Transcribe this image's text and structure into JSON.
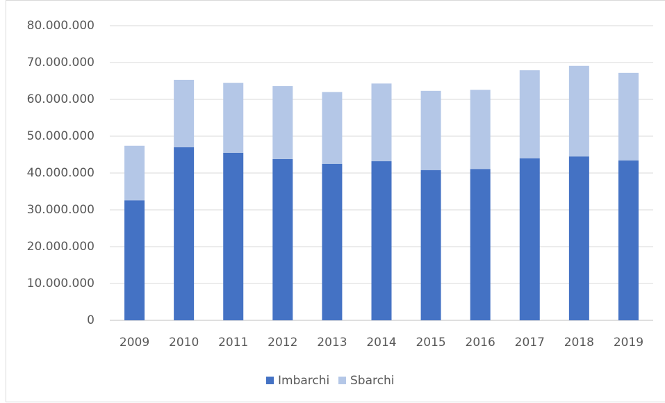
{
  "chart_data": {
    "type": "stacked_bar",
    "categories": [
      "2009",
      "2010",
      "2011",
      "2012",
      "2013",
      "2014",
      "2015",
      "2016",
      "2017",
      "2018",
      "2019"
    ],
    "series": [
      {
        "name": "Imbarchi",
        "color": "#4472c4",
        "values": [
          32600000,
          47000000,
          45500000,
          43800000,
          42500000,
          43200000,
          40800000,
          41100000,
          44000000,
          44500000,
          43400000
        ]
      },
      {
        "name": "Sbarchi",
        "color": "#b4c7e7",
        "values": [
          14800000,
          18300000,
          19000000,
          19800000,
          19500000,
          21100000,
          21500000,
          21500000,
          23900000,
          24600000,
          23800000
        ]
      }
    ],
    "ylim": [
      0,
      80000000
    ],
    "yticks": [
      0,
      {
        "value": 10000000,
        "label": "10.000.000"
      },
      {
        "value": 20000000,
        "label": "20.000.000"
      },
      {
        "value": 30000000,
        "label": "30.000.000"
      },
      {
        "value": 40000000,
        "label": "40.000.000"
      },
      {
        "value": 50000000,
        "label": "50.000.000"
      },
      {
        "value": 60000000,
        "label": "60.000.000"
      },
      {
        "value": 70000000,
        "label": "70.000.000"
      },
      {
        "value": 80000000,
        "label": "80.000.000"
      }
    ],
    "grid": true,
    "legend": "bottom"
  }
}
